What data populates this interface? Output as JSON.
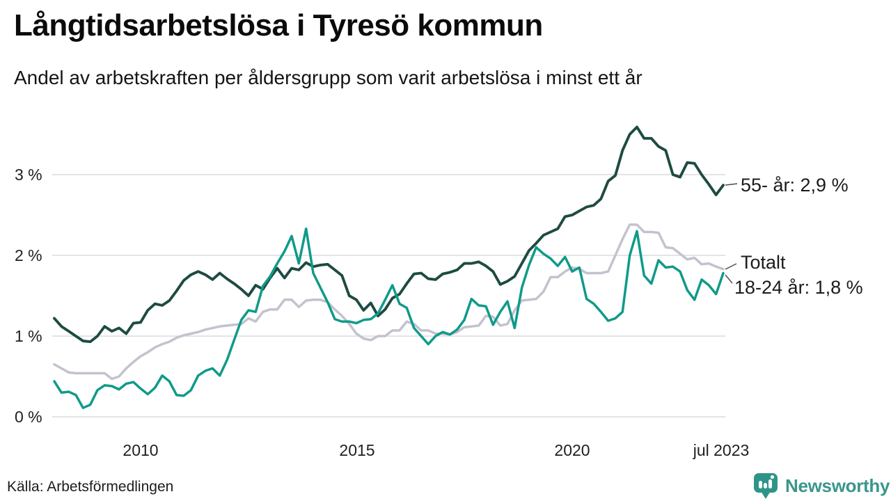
{
  "header": {
    "title": "Långtidsarbetslösa i Tyresö kommun",
    "subtitle": "Andel av arbetskraften per åldersgrupp som varit arbetslösa i minst ett år"
  },
  "footer": {
    "source": "Källa: Arbetsförmedlingen",
    "brand": "Newsworthy"
  },
  "colors": {
    "series_55": "#1e4b41",
    "series_total": "#c3c2ce",
    "series_1824": "#109a89",
    "gridline": "#dcdce0",
    "brand_teal": "#2f9488"
  },
  "chart_data": {
    "type": "line",
    "title": "Långtidsarbetslösa i Tyresö kommun",
    "subtitle": "Andel av arbetskraften per åldersgrupp som varit arbetslösa i minst ett år",
    "x_start": "2008-01",
    "x_end": "2023-07",
    "interval_months": 2,
    "unit": "% av arbetskraften",
    "ylim": [
      0,
      3.8
    ],
    "grid": true,
    "legend_position": "right-end-labels",
    "x_tick_labels": [
      "2010",
      "2015",
      "2020",
      "jul 2023"
    ],
    "y_tick_labels": [
      "3 %",
      "2 %",
      "1 %",
      "0 %"
    ],
    "y_tick_values": [
      3,
      2,
      1,
      0
    ],
    "series": [
      {
        "name": "Totalt",
        "label": "Totalt",
        "color": "#c3c2ce",
        "end_value": 1.83,
        "values": [
          0.65,
          0.6,
          0.55,
          0.54,
          0.54,
          0.54,
          0.54,
          0.54,
          0.47,
          0.5,
          0.6,
          0.68,
          0.75,
          0.8,
          0.86,
          0.9,
          0.93,
          0.98,
          1.01,
          1.03,
          1.05,
          1.08,
          1.1,
          1.12,
          1.13,
          1.14,
          1.15,
          1.22,
          1.18,
          1.3,
          1.33,
          1.33,
          1.45,
          1.45,
          1.36,
          1.44,
          1.45,
          1.45,
          1.42,
          1.33,
          1.25,
          1.15,
          1.03,
          0.97,
          0.95,
          1.0,
          1.0,
          1.07,
          1.07,
          1.18,
          1.15,
          1.07,
          1.07,
          1.03,
          1.03,
          1.02,
          1.05,
          1.11,
          1.12,
          1.13,
          1.25,
          1.24,
          1.13,
          1.15,
          1.32,
          1.44,
          1.45,
          1.46,
          1.55,
          1.73,
          1.73,
          1.8,
          1.85,
          1.83,
          1.78,
          1.78,
          1.78,
          1.8,
          2.0,
          2.2,
          2.38,
          2.38,
          2.29,
          2.29,
          2.28,
          2.1,
          2.09,
          2.02,
          1.95,
          1.97,
          1.89,
          1.9,
          1.86,
          1.83
        ]
      },
      {
        "name": "55- år",
        "label": "55- år: 2,9 %",
        "color": "#1e4b41",
        "end_value": 2.9,
        "values": [
          1.22,
          1.12,
          1.06,
          1.0,
          0.94,
          0.93,
          1.0,
          1.12,
          1.06,
          1.1,
          1.03,
          1.16,
          1.17,
          1.32,
          1.4,
          1.38,
          1.44,
          1.56,
          1.69,
          1.76,
          1.8,
          1.76,
          1.7,
          1.78,
          1.71,
          1.65,
          1.58,
          1.5,
          1.63,
          1.58,
          1.72,
          1.84,
          1.72,
          1.84,
          1.82,
          1.91,
          1.86,
          1.88,
          1.89,
          1.82,
          1.75,
          1.5,
          1.45,
          1.32,
          1.41,
          1.25,
          1.33,
          1.47,
          1.52,
          1.65,
          1.77,
          1.78,
          1.71,
          1.7,
          1.77,
          1.79,
          1.82,
          1.9,
          1.9,
          1.92,
          1.87,
          1.8,
          1.64,
          1.68,
          1.74,
          1.9,
          2.06,
          2.15,
          2.25,
          2.29,
          2.33,
          2.48,
          2.5,
          2.55,
          2.6,
          2.62,
          2.7,
          2.92,
          2.99,
          3.3,
          3.5,
          3.59,
          3.45,
          3.45,
          3.35,
          3.3,
          3.0,
          2.97,
          3.15,
          3.14,
          3.0,
          2.88,
          2.75,
          2.87
        ]
      },
      {
        "name": "18-24 år",
        "label": "18-24 år: 1,8 %",
        "color": "#109a89",
        "end_value": 1.8,
        "values": [
          0.44,
          0.3,
          0.31,
          0.27,
          0.11,
          0.15,
          0.33,
          0.39,
          0.38,
          0.34,
          0.41,
          0.43,
          0.35,
          0.28,
          0.36,
          0.51,
          0.44,
          0.27,
          0.26,
          0.33,
          0.51,
          0.57,
          0.6,
          0.51,
          0.7,
          0.95,
          1.2,
          1.32,
          1.3,
          1.62,
          1.74,
          1.9,
          2.05,
          2.24,
          1.9,
          2.33,
          1.78,
          1.6,
          1.42,
          1.21,
          1.18,
          1.18,
          1.16,
          1.2,
          1.21,
          1.28,
          1.45,
          1.63,
          1.4,
          1.35,
          1.1,
          1.0,
          0.9,
          1.0,
          1.05,
          1.02,
          1.08,
          1.2,
          1.46,
          1.38,
          1.37,
          1.14,
          1.3,
          1.43,
          1.1,
          1.6,
          1.88,
          2.1,
          2.02,
          1.96,
          1.87,
          1.98,
          1.8,
          1.85,
          1.46,
          1.4,
          1.3,
          1.19,
          1.22,
          1.3,
          2.0,
          2.3,
          1.75,
          1.65,
          1.94,
          1.85,
          1.86,
          1.8,
          1.57,
          1.45,
          1.7,
          1.63,
          1.52,
          1.78
        ]
      }
    ]
  }
}
